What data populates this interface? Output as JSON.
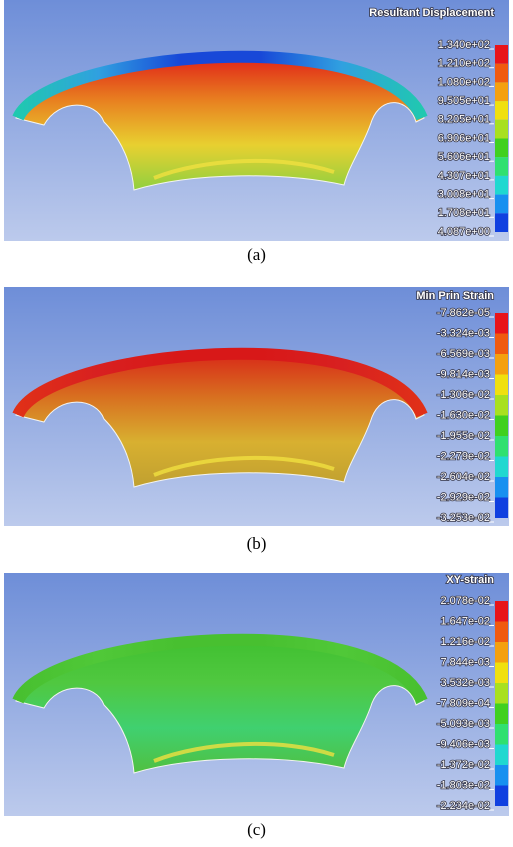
{
  "panels": [
    {
      "legend_title": "Resultant Displacement",
      "legend_labels": [
        "1.340e+02",
        "1.210e+02",
        "1.080e+02",
        "9.505e+01",
        "8.205e+01",
        "6.906e+01",
        "5.606e+01",
        "4.307e+01",
        "3.008e+01",
        "1.708e+01",
        "4.087e+00"
      ],
      "caption": "(a)"
    },
    {
      "legend_title": "Min Prin Strain",
      "legend_labels": [
        "-7.862e-05",
        "-3.324e-03",
        "-6.569e-03",
        "-9.814e-03",
        "-1.306e-02",
        "-1.630e-02",
        "-1.955e-02",
        "-2.279e-02",
        "-2.604e-02",
        "-2.929e-02",
        "-3.253e-02"
      ],
      "caption": "(b)"
    },
    {
      "legend_title": "XY-strain",
      "legend_labels": [
        "2.078e-02",
        "1.647e-02",
        "1.216e-02",
        "7.844e-03",
        "3.532e-03",
        "-7.809e-04",
        "-5.093e-03",
        "-9.406e-03",
        "-1.372e-02",
        "-1.803e-02",
        "-2.234e-02"
      ],
      "caption": "(c)"
    }
  ]
}
